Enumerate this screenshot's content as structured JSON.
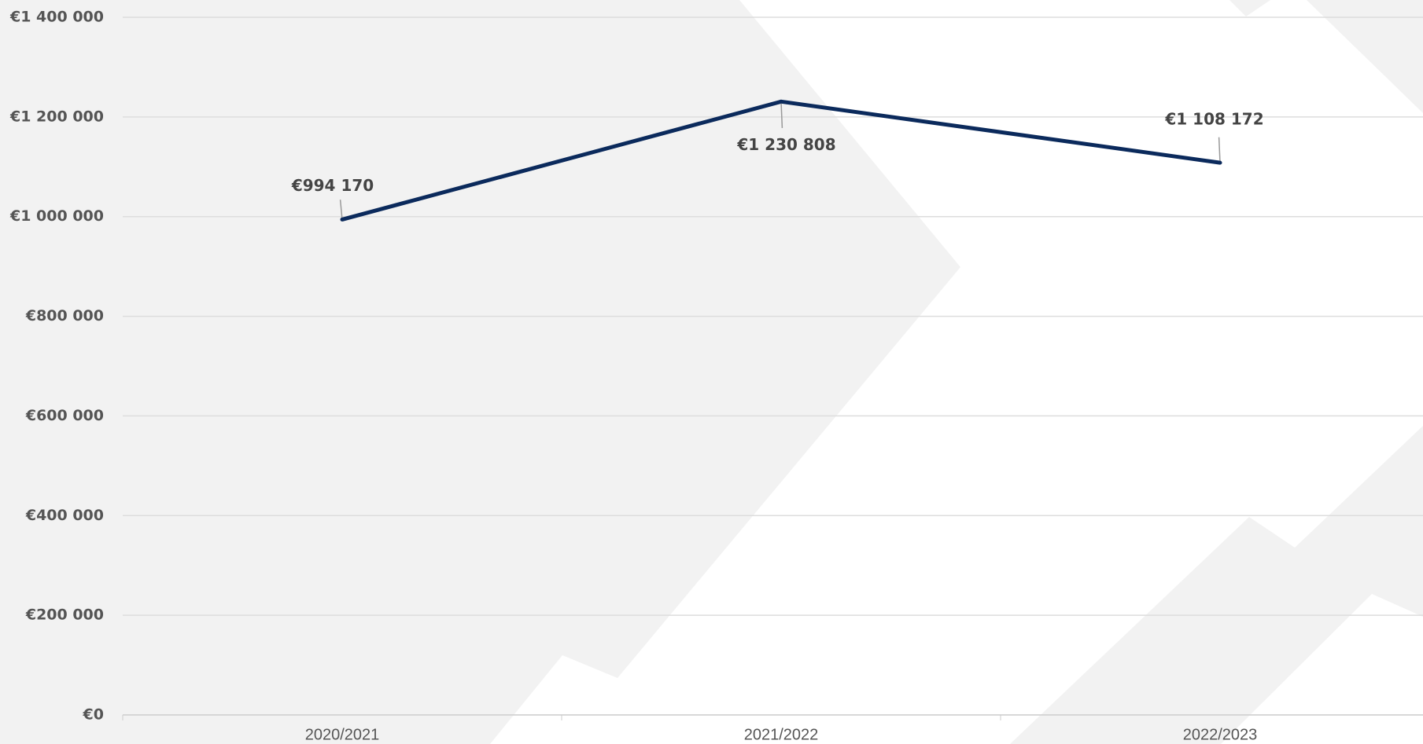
{
  "chart_data": {
    "type": "line",
    "categories": [
      "2020/2021",
      "2021/2022",
      "2022/2023"
    ],
    "series": [
      {
        "name": null,
        "color": "#0b2a5c",
        "values": [
          994170,
          1230808,
          1108172
        ],
        "value_labels": [
          "€994 170",
          "€1 230 808",
          "€1 108 172"
        ]
      }
    ],
    "ylim": [
      0,
      1400000
    ],
    "yticks": [
      {
        "value": 0,
        "label": "€0"
      },
      {
        "value": 200000,
        "label": "€200 000"
      },
      {
        "value": 400000,
        "label": "€400 000"
      },
      {
        "value": 600000,
        "label": "€600 000"
      },
      {
        "value": 800000,
        "label": "€800 000"
      },
      {
        "value": 1000000,
        "label": "€1 000 000"
      },
      {
        "value": 1200000,
        "label": "€1 200 000"
      },
      {
        "value": 1400000,
        "label": "€1 400 000"
      }
    ],
    "grid": true
  }
}
